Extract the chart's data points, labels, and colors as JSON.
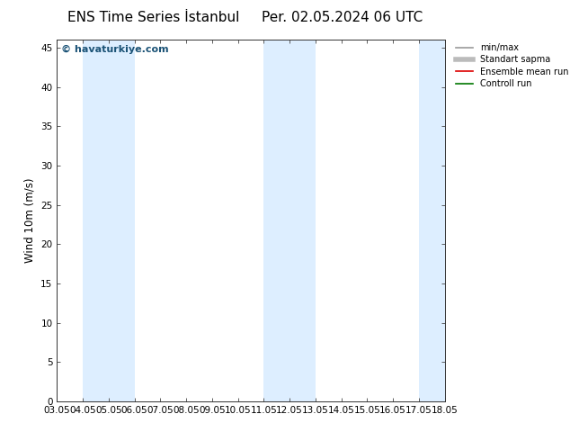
{
  "title_left": "ENS Time Series İstanbul",
  "title_right": "Per. 02.05.2024 06 UTC",
  "ylabel": "Wind 10m (m/s)",
  "watermark": "© havaturkiye.com",
  "x_tick_labels": [
    "03.05",
    "04.05",
    "05.05",
    "06.05",
    "07.05",
    "08.05",
    "09.05",
    "10.05",
    "11.05",
    "12.05",
    "13.05",
    "14.05",
    "15.05",
    "16.05",
    "17.05",
    "18.05"
  ],
  "x_tick_positions": [
    0,
    1,
    2,
    3,
    4,
    5,
    6,
    7,
    8,
    9,
    10,
    11,
    12,
    13,
    14,
    15
  ],
  "ylim": [
    0,
    46
  ],
  "yticks": [
    0,
    5,
    10,
    15,
    20,
    25,
    30,
    35,
    40,
    45
  ],
  "shaded_bands": [
    {
      "xmin": 1.0,
      "xmax": 3.0,
      "color": "#ddeeff"
    },
    {
      "xmin": 8.0,
      "xmax": 10.0,
      "color": "#ddeeff"
    },
    {
      "xmin": 14.0,
      "xmax": 15.0,
      "color": "#ddeeff"
    }
  ],
  "legend_items": [
    {
      "label": "min/max",
      "color": "#999999",
      "lw": 1.2,
      "ls": "-"
    },
    {
      "label": "Standart sapma",
      "color": "#bbbbbb",
      "lw": 4,
      "ls": "-"
    },
    {
      "label": "Ensemble mean run",
      "color": "#dd0000",
      "lw": 1.2,
      "ls": "-"
    },
    {
      "label": "Controll run",
      "color": "#007700",
      "lw": 1.2,
      "ls": "-"
    }
  ],
  "background_color": "#ffffff",
  "plot_bg_color": "#ffffff",
  "title_fontsize": 11,
  "tick_fontsize": 7.5,
  "ylabel_fontsize": 8.5,
  "watermark_color": "#1a5276",
  "watermark_fontsize": 8
}
